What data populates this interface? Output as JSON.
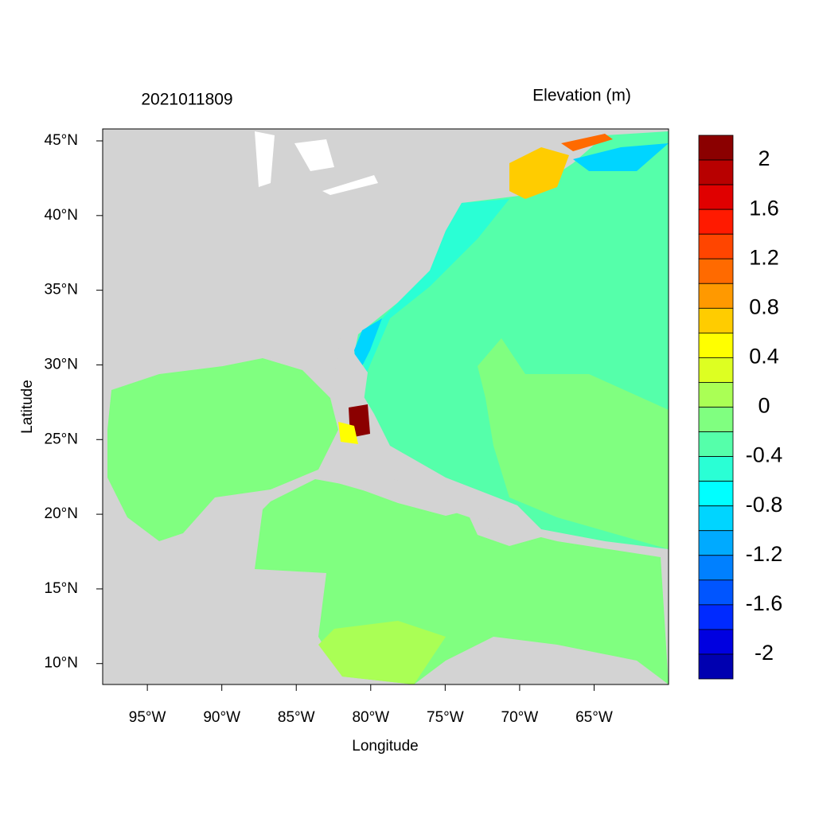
{
  "map": {
    "title_left": "2021011809",
    "title_right": "Elevation (m)",
    "x_label": "Longitude",
    "y_label": "Latitude",
    "xlim": [
      -98,
      -60
    ],
    "ylim": [
      8.6,
      45.8
    ],
    "xticks": [
      {
        "value": -95,
        "label": "95°W"
      },
      {
        "value": -90,
        "label": "90°W"
      },
      {
        "value": -85,
        "label": "85°W"
      },
      {
        "value": -80,
        "label": "80°W"
      },
      {
        "value": -75,
        "label": "75°W"
      },
      {
        "value": -70,
        "label": "70°W"
      },
      {
        "value": -65,
        "label": "65°W"
      }
    ],
    "yticks": [
      {
        "value": 45,
        "label": "45°N"
      },
      {
        "value": 40,
        "label": "40°N"
      },
      {
        "value": 35,
        "label": "35°N"
      },
      {
        "value": 30,
        "label": "30°N"
      },
      {
        "value": 25,
        "label": "25°N"
      },
      {
        "value": 20,
        "label": "20°N"
      },
      {
        "value": 15,
        "label": "15°N"
      },
      {
        "value": 10,
        "label": "10°N"
      }
    ],
    "colorbar": {
      "colors": [
        "#8b0000",
        "#b80000",
        "#e00000",
        "#ff1a00",
        "#ff4500",
        "#ff6a00",
        "#ff9900",
        "#ffcc00",
        "#ffff00",
        "#ddff22",
        "#aaff55",
        "#80ff80",
        "#55ffaa",
        "#2affd5",
        "#00ffff",
        "#00d5ff",
        "#00aaff",
        "#0080ff",
        "#0055ff",
        "#002aff",
        "#0000e0",
        "#0000b0"
      ],
      "labels": [
        2,
        1.6,
        1.2,
        0.8,
        0.4,
        0,
        -0.4,
        -0.8,
        -1.2,
        -1.6,
        -2
      ]
    }
  }
}
